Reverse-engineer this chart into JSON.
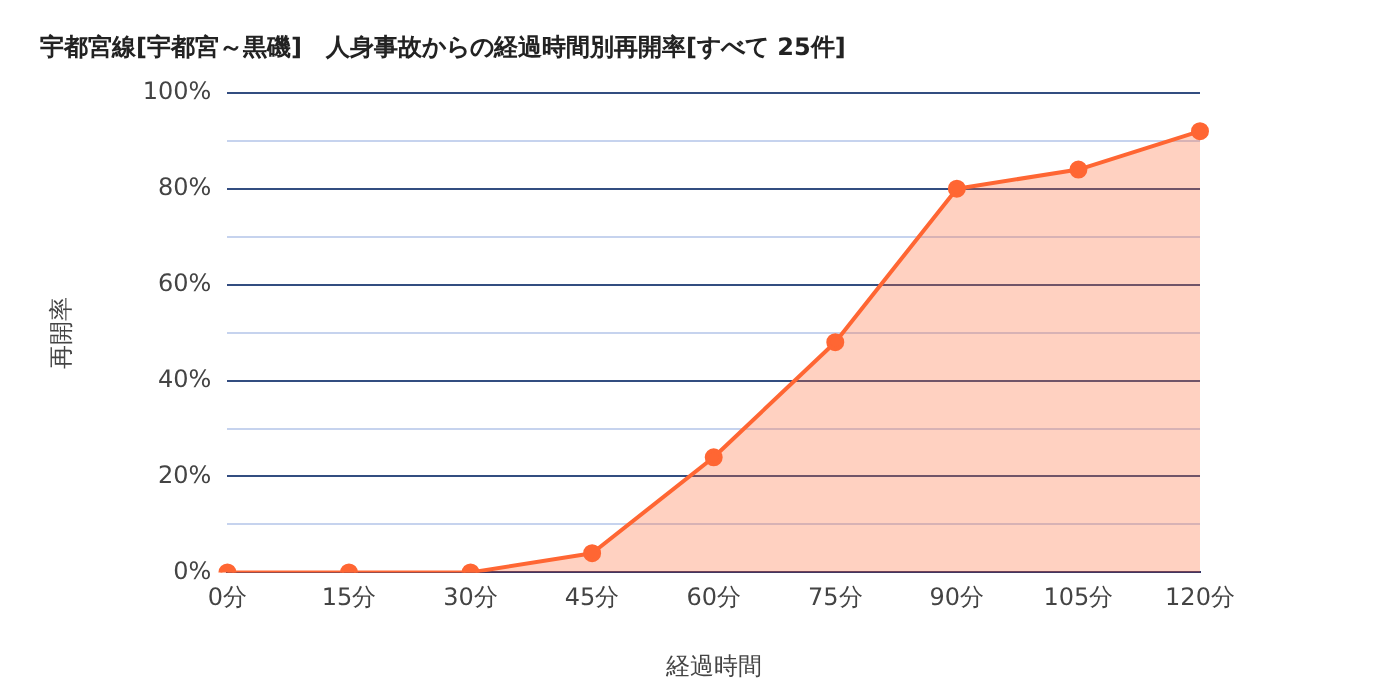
{
  "chart_data": {
    "type": "area",
    "title": "宇都宮線[宇都宮～黒磯]　人身事故からの経過時間別再開率[すべて 25件]",
    "xlabel": "経過時間",
    "ylabel": "再開率",
    "categories": [
      "0分",
      "15分",
      "30分",
      "45分",
      "60分",
      "75分",
      "90分",
      "105分",
      "120分"
    ],
    "series": [
      {
        "color": "#ff6633",
        "values": [
          0,
          0,
          0,
          4,
          24,
          48,
          80,
          84,
          92
        ]
      }
    ],
    "ylim": [
      0,
      100
    ],
    "yticks": [
      {
        "value": 0,
        "label": "0%"
      },
      {
        "value": 10,
        "label": null
      },
      {
        "value": 20,
        "label": "20%"
      },
      {
        "value": 30,
        "label": null
      },
      {
        "value": 40,
        "label": "40%"
      },
      {
        "value": 50,
        "label": null
      },
      {
        "value": 60,
        "label": "60%"
      },
      {
        "value": 70,
        "label": null
      },
      {
        "value": 80,
        "label": "80%"
      },
      {
        "value": 90,
        "label": null
      },
      {
        "value": 100,
        "label": "100%"
      }
    ],
    "grid": "y",
    "legend": false,
    "marker": "circle",
    "line_style": "solid"
  }
}
